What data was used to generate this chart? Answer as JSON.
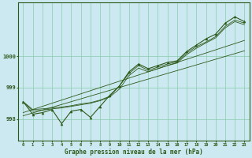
{
  "title": "Graphe pression niveau de la mer (hPa)",
  "bg_color": "#cce8f0",
  "grid_color": "#88ccaa",
  "line_color": "#2d5a1b",
  "marker_color": "#2d5a1b",
  "xlim": [
    -0.5,
    23.5
  ],
  "ylim": [
    997.3,
    1001.7
  ],
  "yticks": [
    998,
    999,
    1000
  ],
  "xticks": [
    0,
    1,
    2,
    3,
    4,
    5,
    6,
    7,
    8,
    9,
    10,
    11,
    12,
    13,
    14,
    15,
    16,
    17,
    18,
    19,
    20,
    21,
    22,
    23
  ],
  "hours": [
    0,
    1,
    2,
    3,
    4,
    5,
    6,
    7,
    8,
    9,
    10,
    11,
    12,
    13,
    14,
    15,
    16,
    17,
    18,
    19,
    20,
    21,
    22,
    23
  ],
  "pressure_main": [
    998.55,
    998.15,
    998.2,
    998.3,
    997.85,
    998.25,
    998.3,
    998.05,
    998.4,
    998.75,
    999.05,
    999.5,
    999.75,
    999.6,
    999.7,
    999.8,
    999.85,
    1000.15,
    1000.35,
    1000.55,
    1000.7,
    1001.05,
    1001.25,
    1001.1
  ],
  "trend_line1": [
    998.55,
    998.3,
    998.32,
    998.35,
    998.38,
    998.42,
    998.48,
    998.52,
    998.6,
    998.72,
    999.05,
    999.45,
    999.7,
    999.55,
    999.65,
    999.75,
    999.82,
    1000.1,
    1000.3,
    1000.45,
    1000.62,
    1000.95,
    1001.15,
    1001.05
  ],
  "trend_line2": [
    998.55,
    998.25,
    998.28,
    998.32,
    998.35,
    998.4,
    998.45,
    998.5,
    998.58,
    998.7,
    998.95,
    999.38,
    999.62,
    999.5,
    999.6,
    999.7,
    999.78,
    1000.05,
    1000.25,
    1000.42,
    1000.58,
    1000.9,
    1001.1,
    1001.0
  ],
  "trend_straight1": [
    998.1,
    998.19,
    998.28,
    998.37,
    998.46,
    998.55,
    998.64,
    998.73,
    998.82,
    998.91,
    999.0,
    999.09,
    999.18,
    999.27,
    999.36,
    999.45,
    999.54,
    999.63,
    999.72,
    999.81,
    999.9,
    999.99,
    1000.08,
    1000.17
  ],
  "trend_straight2": [
    998.2,
    998.3,
    998.4,
    998.5,
    998.6,
    998.7,
    998.8,
    998.9,
    999.0,
    999.1,
    999.2,
    999.3,
    999.4,
    999.5,
    999.6,
    999.7,
    999.8,
    999.9,
    1000.0,
    1000.1,
    1000.2,
    1000.3,
    1000.4,
    1000.5
  ]
}
